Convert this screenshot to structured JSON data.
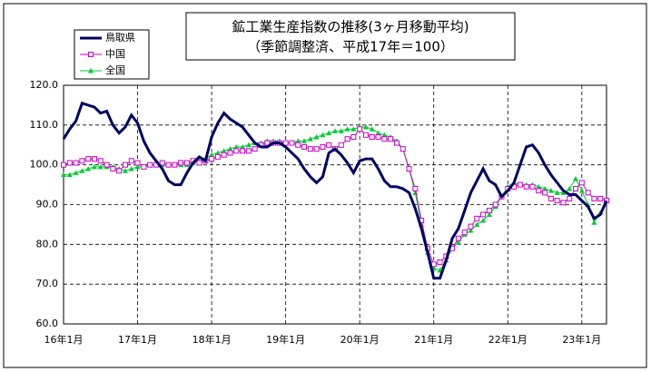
{
  "chart_data": {
    "type": "line",
    "title": "鉱工業生産指数の推移(3ヶ月移動平均)",
    "subtitle": "（季節調整済、平成17年＝100）",
    "categories": [
      "16年1月",
      null,
      null,
      null,
      null,
      null,
      null,
      null,
      null,
      null,
      null,
      null,
      "17年1月",
      null,
      null,
      null,
      null,
      null,
      null,
      null,
      null,
      null,
      null,
      null,
      "18年1月",
      null,
      null,
      null,
      null,
      null,
      null,
      null,
      null,
      null,
      null,
      null,
      "19年1月",
      null,
      null,
      null,
      null,
      null,
      null,
      null,
      null,
      null,
      null,
      null,
      "20年1月",
      null,
      null,
      null,
      null,
      null,
      null,
      null,
      null,
      null,
      null,
      null,
      "21年1月",
      null,
      null,
      null,
      null,
      null,
      null,
      null,
      null,
      null,
      null,
      null,
      "22年1月",
      null,
      null,
      null,
      null,
      null,
      null,
      null,
      null,
      null,
      null,
      null,
      "23年1月",
      null,
      null,
      null,
      null
    ],
    "series": [
      {
        "name": "鳥取県",
        "color": "#000066",
        "marker": null,
        "values": [
          106.5,
          109,
          111,
          115.5,
          115,
          114.5,
          113,
          113.5,
          110,
          108,
          109.5,
          112.5,
          110.5,
          106,
          103,
          101,
          99,
          96,
          95,
          95,
          98,
          100.5,
          102,
          101,
          107,
          110.5,
          113,
          111.5,
          110.5,
          109.5,
          107.5,
          105.5,
          104.5,
          104.5,
          105.5,
          105.5,
          104.5,
          103,
          101.5,
          99,
          97,
          95.5,
          97,
          103,
          104,
          102.5,
          100.5,
          98,
          101,
          101.5,
          101.5,
          99,
          96,
          94.5,
          94.5,
          94,
          93,
          89,
          84,
          78,
          71.5,
          71.5,
          76,
          81.5,
          84,
          88.5,
          93,
          96,
          99,
          96,
          95,
          92,
          93.5,
          95.5,
          100,
          104.5,
          105,
          103,
          100,
          97.5,
          95.5,
          93.5,
          92.5,
          92.5,
          91,
          89.5,
          86.5,
          87.5,
          91
        ]
      },
      {
        "name": "中国",
        "color": "#cc00cc",
        "marker": "square",
        "values": [
          100,
          100.5,
          100.5,
          101,
          101.5,
          101.5,
          101,
          100,
          99,
          98.5,
          100,
          101,
          100.5,
          99.5,
          100,
          100,
          100.5,
          100,
          100,
          100.5,
          100.5,
          101,
          100.5,
          101,
          101.5,
          102,
          102.5,
          103,
          103.5,
          103.5,
          103.5,
          104,
          105,
          105.5,
          105.5,
          105.5,
          105.5,
          105.5,
          105,
          104.5,
          104,
          104,
          104.5,
          105,
          104,
          105,
          106.5,
          107,
          109,
          107.5,
          107,
          107,
          106.5,
          106.5,
          105.5,
          104,
          99,
          94,
          86,
          79,
          75,
          75.5,
          77,
          79,
          81.5,
          83,
          84.5,
          86.5,
          87.5,
          88.5,
          90,
          92,
          94,
          94.5,
          95,
          94.5,
          94.5,
          93.5,
          93,
          91.5,
          91,
          90.5,
          91.5,
          94,
          95.5,
          93,
          91.5,
          91.5,
          91
        ]
      },
      {
        "name": "全国",
        "color": "#00cc33",
        "marker": "triangle",
        "values": [
          97.5,
          97.5,
          98,
          98.5,
          99,
          99.5,
          99.5,
          99.5,
          99.5,
          99,
          98.5,
          99,
          99.5,
          99.5,
          100,
          100,
          100,
          100,
          100,
          100,
          100,
          100.5,
          101,
          101.5,
          102.5,
          103,
          103.5,
          104,
          104.5,
          104.5,
          105,
          105.5,
          105.5,
          106,
          106,
          106,
          105.5,
          105.5,
          106,
          106,
          106.5,
          107,
          107.5,
          108,
          108.5,
          108.5,
          109,
          109,
          109.5,
          109.5,
          109,
          108,
          107.5,
          107,
          106,
          104,
          99,
          93,
          85,
          78,
          74,
          73.5,
          76,
          79,
          80.5,
          82.5,
          83.5,
          85,
          86,
          87.5,
          89.5,
          92,
          94.5,
          95.5,
          95,
          95,
          95,
          94.5,
          94,
          93.5,
          93,
          93,
          94,
          96.5,
          93.5,
          90,
          85.5,
          88,
          91
        ]
      }
    ],
    "ylim": [
      60,
      120
    ],
    "yticks": [
      {
        "value": 60,
        "label": "60.0"
      },
      {
        "value": 70,
        "label": "70.0"
      },
      {
        "value": 80,
        "label": "80.0"
      },
      {
        "value": 90,
        "label": "90.0"
      },
      {
        "value": 100,
        "label": "100.0"
      },
      {
        "value": 110,
        "label": "110.0"
      },
      {
        "value": 120,
        "label": "120.0"
      }
    ],
    "grid": true,
    "legend": "top-left"
  }
}
